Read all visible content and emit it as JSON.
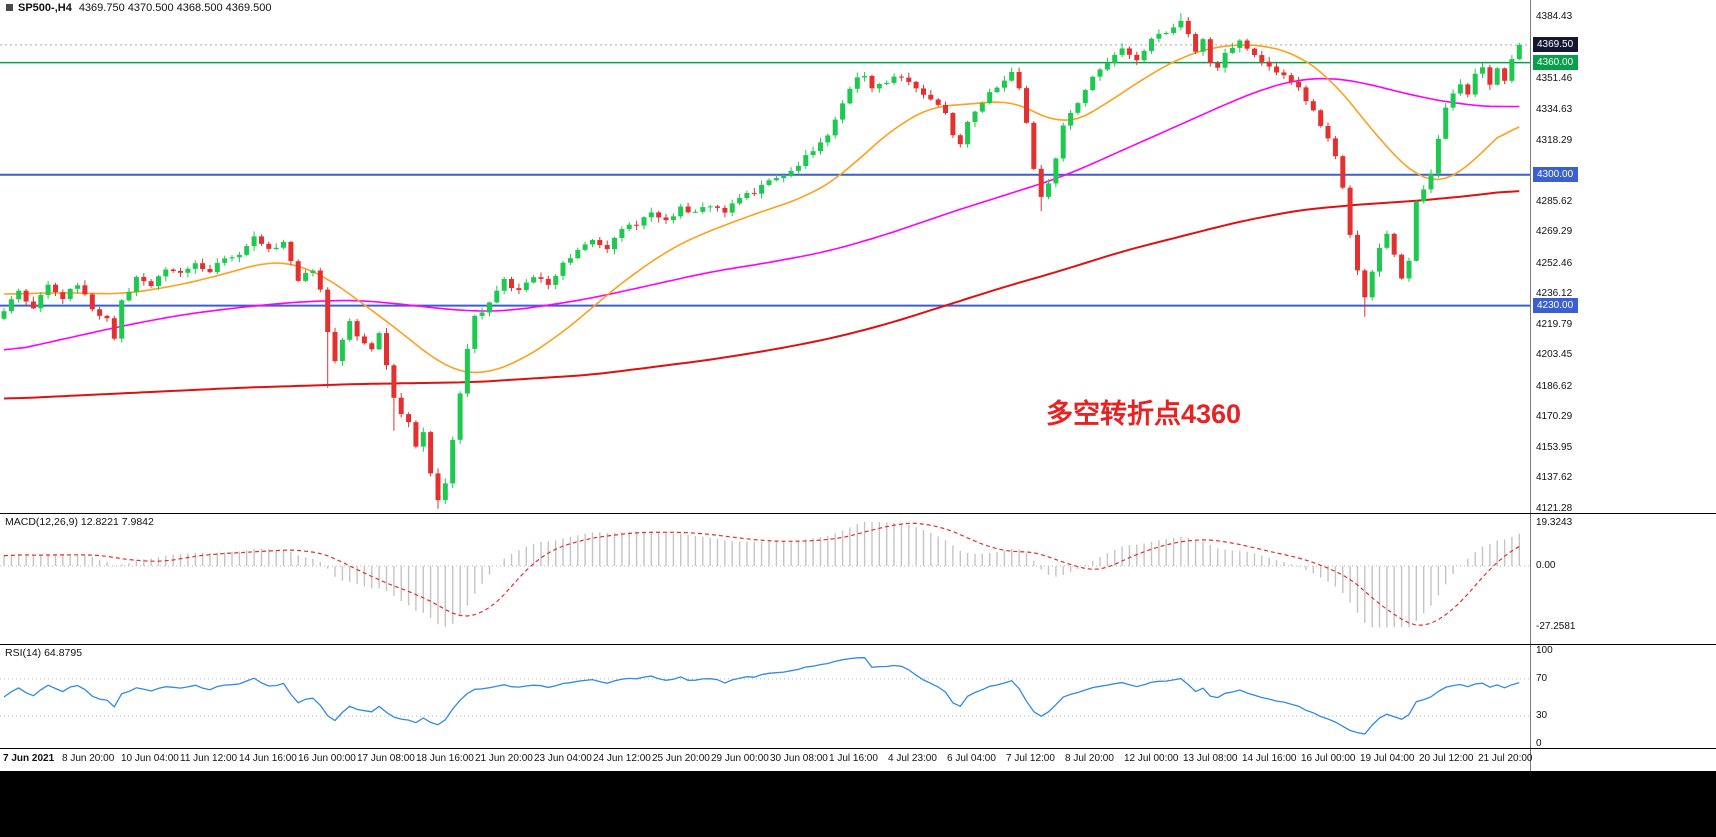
{
  "header": {
    "symbol_title": "SP500-,H4",
    "ohlc": "4369.750 4370.500 4368.500 4369.500"
  },
  "annotation": {
    "text": "多空转折点4360",
    "color": "#e82222"
  },
  "price_axis": {
    "ticks": [
      "4384.43",
      "4351.46",
      "4334.63",
      "4318.29",
      "4285.62",
      "4269.29",
      "4252.46",
      "4236.12",
      "4219.79",
      "4203.45",
      "4186.62",
      "4170.29",
      "4153.95",
      "4137.62",
      "4121.28"
    ],
    "special": [
      {
        "text": "4369.50",
        "price": 4369.5,
        "bg": "#161632",
        "fg": "#ffffff"
      },
      {
        "text": "4360.00",
        "price": 4360.0,
        "bg": "#04a04a",
        "fg": "#ffffff"
      },
      {
        "text": "4300.00",
        "price": 4300.0,
        "bg": "#3a5fd0",
        "fg": "#ffffff"
      },
      {
        "text": "4230.00",
        "price": 4230.0,
        "bg": "#3a5fd0",
        "fg": "#ffffff"
      }
    ]
  },
  "macd_panel": {
    "label": "MACD(12,26,9) 12.8221 7.9842",
    "axis": [
      "19.3243",
      "0.00",
      "-27.2581"
    ]
  },
  "rsi_panel": {
    "label": "RSI(14) 64.8795",
    "axis": [
      "100",
      "70",
      "30",
      "0"
    ]
  },
  "time_axis": [
    "7 Jun 2021",
    "8 Jun 20:00",
    "10 Jun 04:00",
    "11 Jun 12:00",
    "14 Jun 16:00",
    "16 Jun 00:00",
    "17 Jun 08:00",
    "18 Jun 16:00",
    "21 Jun 20:00",
    "23 Jun 04:00",
    "24 Jun 12:00",
    "25 Jun 20:00",
    "29 Jun 00:00",
    "30 Jun 08:00",
    "1 Jul 16:00",
    "4 Jul 23:00",
    "6 Jul 04:00",
    "7 Jul 12:00",
    "8 Jul 20:00",
    "12 Jul 00:00",
    "13 Jul 08:00",
    "14 Jul 16:00",
    "16 Jul 00:00",
    "19 Jul 04:00",
    "20 Jul 12:00",
    "21 Jul 20:00"
  ],
  "chart_data": {
    "type": "candlestick",
    "symbol": "SP500-",
    "timeframe": "H4",
    "title": "SP500-,H4 4369.750 4370.500 4368.500 4369.500",
    "bars": 207,
    "price_range": {
      "top": 4393.5,
      "bottom": 4119.0
    },
    "levels": {
      "bid": 4369.5,
      "turning_point": 4360,
      "support": [
        4300,
        4230
      ]
    },
    "hlines": [
      {
        "price": 4360,
        "color": "#04a04a",
        "width": 1.5
      },
      {
        "price": 4300,
        "color": "#3a5fd0",
        "width": 2
      },
      {
        "price": 4230,
        "color": "#3a5fd0",
        "width": 2
      }
    ],
    "colors": {
      "up": "#1ec94f",
      "down": "#e53030",
      "macd_hist": "#c4c4c4",
      "macd_signal": "#e53030",
      "rsi": "#2f8be6",
      "grid_dotted": "#b9b9b9",
      "bid_line": "#aaaaaa"
    },
    "close_anchors": [
      [
        0,
        4227
      ],
      [
        2,
        4238
      ],
      [
        4,
        4228
      ],
      [
        6,
        4241
      ],
      [
        8,
        4234
      ],
      [
        10,
        4242
      ],
      [
        12,
        4228
      ],
      [
        14,
        4222
      ],
      [
        15,
        4213
      ],
      [
        16,
        4232
      ],
      [
        18,
        4244
      ],
      [
        20,
        4240
      ],
      [
        22,
        4249
      ],
      [
        24,
        4247
      ],
      [
        26,
        4252
      ],
      [
        28,
        4249
      ],
      [
        30,
        4256
      ],
      [
        32,
        4258
      ],
      [
        34,
        4266
      ],
      [
        36,
        4259
      ],
      [
        38,
        4263
      ],
      [
        40,
        4244
      ],
      [
        42,
        4249
      ],
      [
        43,
        4238
      ],
      [
        44,
        4216
      ],
      [
        45,
        4201
      ],
      [
        46,
        4211
      ],
      [
        47,
        4222
      ],
      [
        48,
        4214
      ],
      [
        50,
        4206
      ],
      [
        51,
        4216
      ],
      [
        52,
        4199
      ],
      [
        53,
        4181
      ],
      [
        54,
        4172
      ],
      [
        55,
        4167
      ],
      [
        56,
        4154
      ],
      [
        57,
        4161
      ],
      [
        58,
        4139
      ],
      [
        59,
        4127
      ],
      [
        60,
        4136
      ],
      [
        61,
        4158
      ],
      [
        62,
        4184
      ],
      [
        63,
        4206
      ],
      [
        64,
        4224
      ],
      [
        66,
        4231
      ],
      [
        68,
        4243
      ],
      [
        70,
        4238
      ],
      [
        72,
        4246
      ],
      [
        74,
        4241
      ],
      [
        76,
        4252
      ],
      [
        78,
        4259
      ],
      [
        80,
        4266
      ],
      [
        82,
        4261
      ],
      [
        84,
        4271
      ],
      [
        86,
        4274
      ],
      [
        88,
        4279
      ],
      [
        90,
        4275
      ],
      [
        92,
        4282
      ],
      [
        94,
        4279
      ],
      [
        96,
        4284
      ],
      [
        98,
        4281
      ],
      [
        100,
        4288
      ],
      [
        102,
        4291
      ],
      [
        104,
        4296
      ],
      [
        106,
        4299
      ],
      [
        108,
        4306
      ],
      [
        110,
        4313
      ],
      [
        112,
        4321
      ],
      [
        113,
        4329
      ],
      [
        114,
        4337
      ],
      [
        115,
        4345
      ],
      [
        116,
        4351
      ],
      [
        117,
        4353
      ],
      [
        118,
        4346
      ],
      [
        120,
        4350
      ],
      [
        122,
        4353
      ],
      [
        124,
        4345
      ],
      [
        126,
        4341
      ],
      [
        128,
        4334
      ],
      [
        129,
        4321
      ],
      [
        130,
        4317
      ],
      [
        131,
        4327
      ],
      [
        132,
        4334
      ],
      [
        134,
        4343
      ],
      [
        136,
        4351
      ],
      [
        137,
        4355
      ],
      [
        138,
        4347
      ],
      [
        139,
        4329
      ],
      [
        140,
        4304
      ],
      [
        141,
        4287
      ],
      [
        142,
        4296
      ],
      [
        143,
        4309
      ],
      [
        144,
        4326
      ],
      [
        146,
        4339
      ],
      [
        148,
        4353
      ],
      [
        150,
        4361
      ],
      [
        152,
        4368
      ],
      [
        154,
        4362
      ],
      [
        156,
        4373
      ],
      [
        158,
        4377
      ],
      [
        160,
        4383
      ],
      [
        161,
        4375
      ],
      [
        162,
        4367
      ],
      [
        163,
        4373
      ],
      [
        164,
        4361
      ],
      [
        165,
        4356
      ],
      [
        166,
        4365
      ],
      [
        168,
        4371
      ],
      [
        170,
        4364
      ],
      [
        172,
        4357
      ],
      [
        174,
        4352
      ],
      [
        176,
        4347
      ],
      [
        178,
        4334
      ],
      [
        180,
        4319
      ],
      [
        181,
        4309
      ],
      [
        182,
        4294
      ],
      [
        183,
        4268
      ],
      [
        184,
        4249
      ],
      [
        185,
        4234
      ],
      [
        186,
        4249
      ],
      [
        187,
        4261
      ],
      [
        188,
        4269
      ],
      [
        189,
        4257
      ],
      [
        190,
        4245
      ],
      [
        191,
        4253
      ],
      [
        192,
        4286
      ],
      [
        193,
        4293
      ],
      [
        194,
        4301
      ],
      [
        195,
        4319
      ],
      [
        196,
        4336
      ],
      [
        197,
        4343
      ],
      [
        198,
        4349
      ],
      [
        199,
        4343
      ],
      [
        200,
        4353
      ],
      [
        201,
        4357
      ],
      [
        202,
        4347
      ],
      [
        203,
        4356
      ],
      [
        204,
        4349
      ],
      [
        205,
        4361
      ],
      [
        206,
        4369.5
      ]
    ],
    "wick_overrides": {
      "44": {
        "low": 4186
      },
      "53": {
        "low": 4163
      },
      "59": {
        "low": 4121.3
      },
      "141": {
        "low": 4280.5
      },
      "160": {
        "high": 4386.5
      },
      "185": {
        "low": 4224
      },
      "206": {
        "high": 4370.5
      }
    },
    "moving_averages": [
      {
        "name": "ma-slow",
        "color": "#dd1111",
        "width": 2,
        "anchors": [
          [
            0,
            4180
          ],
          [
            16,
            4183
          ],
          [
            32,
            4186
          ],
          [
            48,
            4188
          ],
          [
            64,
            4189
          ],
          [
            80,
            4193
          ],
          [
            96,
            4201
          ],
          [
            104,
            4206
          ],
          [
            112,
            4212
          ],
          [
            120,
            4220
          ],
          [
            128,
            4230
          ],
          [
            136,
            4240
          ],
          [
            144,
            4249
          ],
          [
            152,
            4259
          ],
          [
            160,
            4267
          ],
          [
            168,
            4275
          ],
          [
            176,
            4281
          ],
          [
            184,
            4284
          ],
          [
            192,
            4286
          ],
          [
            200,
            4289
          ],
          [
            206,
            4292
          ]
        ]
      },
      {
        "name": "ma-medium",
        "color": "#ff00ff",
        "width": 1.6,
        "anchors": [
          [
            0,
            4205
          ],
          [
            8,
            4212
          ],
          [
            16,
            4219
          ],
          [
            24,
            4225
          ],
          [
            32,
            4229
          ],
          [
            40,
            4232
          ],
          [
            48,
            4233
          ],
          [
            56,
            4230
          ],
          [
            60,
            4228
          ],
          [
            64,
            4227
          ],
          [
            68,
            4227
          ],
          [
            72,
            4229
          ],
          [
            80,
            4234
          ],
          [
            88,
            4241
          ],
          [
            96,
            4248
          ],
          [
            104,
            4253
          ],
          [
            112,
            4259
          ],
          [
            120,
            4268
          ],
          [
            128,
            4279
          ],
          [
            136,
            4289
          ],
          [
            144,
            4299
          ],
          [
            152,
            4313
          ],
          [
            160,
            4327
          ],
          [
            168,
            4341
          ],
          [
            172,
            4347
          ],
          [
            176,
            4351
          ],
          [
            180,
            4352
          ],
          [
            184,
            4350
          ],
          [
            188,
            4346
          ],
          [
            192,
            4342
          ],
          [
            196,
            4339
          ],
          [
            200,
            4337
          ],
          [
            203,
            4336
          ],
          [
            206,
            4337
          ]
        ]
      },
      {
        "name": "ma-fast",
        "color": "#ffa01e",
        "width": 1.6,
        "anchors": [
          [
            0,
            4236
          ],
          [
            8,
            4237
          ],
          [
            16,
            4236
          ],
          [
            24,
            4241
          ],
          [
            32,
            4249
          ],
          [
            36,
            4254
          ],
          [
            40,
            4252
          ],
          [
            44,
            4245
          ],
          [
            48,
            4233
          ],
          [
            52,
            4222
          ],
          [
            56,
            4209
          ],
          [
            60,
            4197
          ],
          [
            63,
            4193
          ],
          [
            66,
            4194
          ],
          [
            70,
            4200
          ],
          [
            74,
            4210
          ],
          [
            78,
            4222
          ],
          [
            82,
            4236
          ],
          [
            86,
            4248
          ],
          [
            90,
            4259
          ],
          [
            94,
            4267
          ],
          [
            98,
            4273
          ],
          [
            102,
            4279
          ],
          [
            106,
            4284
          ],
          [
            110,
            4290
          ],
          [
            114,
            4300
          ],
          [
            118,
            4315
          ],
          [
            122,
            4328
          ],
          [
            126,
            4336
          ],
          [
            128,
            4338
          ],
          [
            132,
            4337
          ],
          [
            136,
            4341
          ],
          [
            140,
            4334
          ],
          [
            144,
            4326
          ],
          [
            148,
            4333
          ],
          [
            152,
            4344
          ],
          [
            156,
            4354
          ],
          [
            160,
            4363
          ],
          [
            164,
            4368
          ],
          [
            168,
            4370
          ],
          [
            172,
            4369
          ],
          [
            176,
            4364
          ],
          [
            180,
            4353
          ],
          [
            184,
            4334
          ],
          [
            188,
            4314
          ],
          [
            192,
            4299
          ],
          [
            194,
            4295
          ],
          [
            196,
            4296
          ],
          [
            198,
            4301
          ],
          [
            200,
            4308
          ],
          [
            202,
            4316
          ],
          [
            204,
            4324
          ],
          [
            206,
            4331
          ]
        ]
      }
    ],
    "macd": {
      "fast": 12,
      "slow": 26,
      "signal": 9,
      "main_value": 12.8221,
      "signal_value": 7.9842,
      "range": [
        -27.2581,
        19.3243
      ]
    },
    "rsi": {
      "period": 14,
      "value": 64.8795,
      "levels": [
        30,
        70
      ],
      "range": [
        0,
        100
      ]
    }
  }
}
